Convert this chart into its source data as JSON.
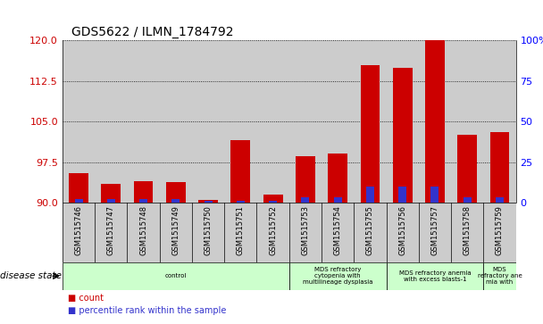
{
  "title": "GDS5622 / ILMN_1784792",
  "samples": [
    "GSM1515746",
    "GSM1515747",
    "GSM1515748",
    "GSM1515749",
    "GSM1515750",
    "GSM1515751",
    "GSM1515752",
    "GSM1515753",
    "GSM1515754",
    "GSM1515755",
    "GSM1515756",
    "GSM1515757",
    "GSM1515758",
    "GSM1515759"
  ],
  "count_values": [
    95.5,
    93.5,
    94.0,
    93.8,
    90.5,
    101.5,
    91.5,
    98.5,
    99.0,
    115.5,
    115.0,
    120.5,
    102.5,
    103.0
  ],
  "percentile_values": [
    2,
    2,
    2,
    2,
    1,
    1,
    1,
    3,
    3,
    10,
    10,
    10,
    3,
    3
  ],
  "ymin": 90,
  "ymax": 120,
  "yticks_left": [
    90,
    97.5,
    105,
    112.5,
    120
  ],
  "yticks_right": [
    0,
    25,
    50,
    75,
    100
  ],
  "bar_color_red": "#cc0000",
  "bar_color_blue": "#3333cc",
  "chart_bg": "#ffffff",
  "col_bg": "#cccccc",
  "disease_groups": [
    {
      "label": "control",
      "start": 0,
      "end": 6,
      "color": "#ccffcc"
    },
    {
      "label": "MDS refractory\ncytopenia with\nmultilineage dysplasia",
      "start": 7,
      "end": 9,
      "color": "#ccffcc"
    },
    {
      "label": "MDS refractory anemia\nwith excess blasts-1",
      "start": 10,
      "end": 12,
      "color": "#ccffcc"
    },
    {
      "label": "MDS\nrefractory ane\nmia with",
      "start": 13,
      "end": 13,
      "color": "#ccffcc"
    }
  ],
  "legend_count_label": "count",
  "legend_pct_label": "percentile rank within the sample",
  "disease_state_label": "disease state"
}
